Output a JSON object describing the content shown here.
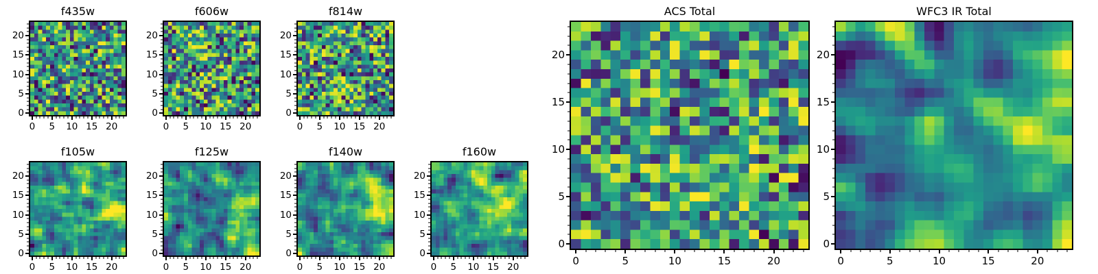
{
  "figure": {
    "background": "#ffffff",
    "colormap": "viridis",
    "colormap_stops": [
      "#440154",
      "#482878",
      "#3e4989",
      "#31688e",
      "#26828e",
      "#1f9e89",
      "#35b779",
      "#6ece58",
      "#b5de2b",
      "#fde725"
    ],
    "spine_color": "#000000",
    "minor_tick_step": 1
  },
  "chart_data": [
    {
      "type": "heatmap",
      "title": "f435w",
      "grid": [
        24,
        24
      ],
      "xlim": [
        0,
        24
      ],
      "ylim": [
        0,
        24
      ],
      "xticks": [
        0,
        5,
        10,
        15,
        20
      ],
      "yticks": [
        0,
        5,
        10,
        15,
        20
      ],
      "seed": 101,
      "blur": 0,
      "gamma": 0.9,
      "hotspot": null
    },
    {
      "type": "heatmap",
      "title": "f606w",
      "grid": [
        24,
        24
      ],
      "xlim": [
        0,
        24
      ],
      "ylim": [
        0,
        24
      ],
      "xticks": [
        0,
        5,
        10,
        15,
        20
      ],
      "yticks": [
        0,
        5,
        10,
        15,
        20
      ],
      "seed": 202,
      "blur": 0,
      "gamma": 0.9,
      "hotspot": null
    },
    {
      "type": "heatmap",
      "title": "f814w",
      "grid": [
        24,
        24
      ],
      "xlim": [
        0,
        24
      ],
      "ylim": [
        0,
        24
      ],
      "xticks": [
        0,
        5,
        10,
        15,
        20
      ],
      "yticks": [
        0,
        5,
        10,
        15,
        20
      ],
      "seed": 303,
      "blur": 0,
      "gamma": 0.9,
      "hotspot": null
    },
    {
      "type": "heatmap",
      "title": "f105w",
      "grid": [
        24,
        24
      ],
      "xlim": [
        0,
        24
      ],
      "ylim": [
        0,
        24
      ],
      "xticks": [
        0,
        5,
        10,
        15,
        20
      ],
      "yticks": [
        0,
        5,
        10,
        15,
        20
      ],
      "seed": 404,
      "blur": 1,
      "gamma": 0.95,
      "hotspot": {
        "x": 20,
        "y": 11,
        "sigma": 3.5,
        "amp": 0.35
      }
    },
    {
      "type": "heatmap",
      "title": "f125w",
      "grid": [
        24,
        24
      ],
      "xlim": [
        0,
        24
      ],
      "ylim": [
        0,
        24
      ],
      "xticks": [
        0,
        5,
        10,
        15,
        20
      ],
      "yticks": [
        0,
        5,
        10,
        15,
        20
      ],
      "seed": 505,
      "blur": 1,
      "gamma": 0.95,
      "hotspot": {
        "x": 19,
        "y": 12,
        "sigma": 3.5,
        "amp": 0.35
      }
    },
    {
      "type": "heatmap",
      "title": "f140w",
      "grid": [
        24,
        24
      ],
      "xlim": [
        0,
        24
      ],
      "ylim": [
        0,
        24
      ],
      "xticks": [
        0,
        5,
        10,
        15,
        20
      ],
      "yticks": [
        0,
        5,
        10,
        15,
        20
      ],
      "seed": 606,
      "blur": 1,
      "gamma": 0.95,
      "hotspot": {
        "x": 20,
        "y": 12,
        "sigma": 4.0,
        "amp": 0.4
      }
    },
    {
      "type": "heatmap",
      "title": "f160w",
      "grid": [
        24,
        24
      ],
      "xlim": [
        0,
        24
      ],
      "ylim": [
        0,
        24
      ],
      "xticks": [
        0,
        5,
        10,
        15,
        20
      ],
      "yticks": [
        0,
        5,
        10,
        15,
        20
      ],
      "seed": 707,
      "blur": 1,
      "gamma": 0.95,
      "hotspot": {
        "x": 19,
        "y": 13,
        "sigma": 3.5,
        "amp": 0.3
      }
    },
    {
      "type": "heatmap",
      "title": "ACS Total",
      "grid": [
        24,
        24
      ],
      "xlim": [
        0,
        24
      ],
      "ylim": [
        0,
        24
      ],
      "xticks": [
        0,
        5,
        10,
        15,
        20
      ],
      "yticks": [
        0,
        5,
        10,
        15,
        20
      ],
      "seed": 808,
      "blur": 0,
      "gamma": 0.75,
      "hotspot": null
    },
    {
      "type": "heatmap",
      "title": "WFC3 IR Total",
      "grid": [
        24,
        24
      ],
      "xlim": [
        0,
        24
      ],
      "ylim": [
        0,
        24
      ],
      "xticks": [
        0,
        5,
        10,
        15,
        20
      ],
      "yticks": [
        0,
        5,
        10,
        15,
        20
      ],
      "seed": 909,
      "blur": 2,
      "gamma": 1.1,
      "hotspot": {
        "x": 21,
        "y": 12,
        "sigma": 4.0,
        "amp": 0.55
      }
    }
  ]
}
